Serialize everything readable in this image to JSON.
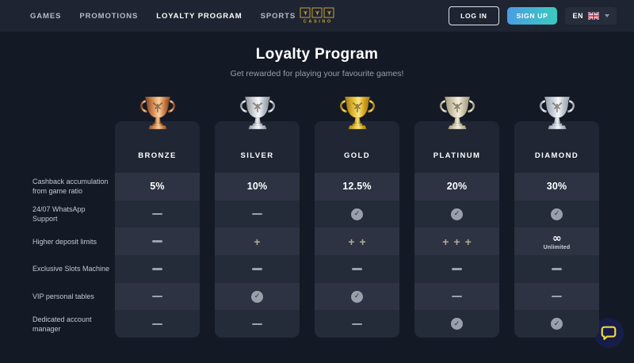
{
  "nav": {
    "items": [
      {
        "label": "GAMES",
        "active": false
      },
      {
        "label": "PROMOTIONS",
        "active": false
      },
      {
        "label": "LOYALTY PROGRAM",
        "active": true
      },
      {
        "label": "SPORTS",
        "active": false
      }
    ],
    "brand": "CASINO",
    "login_label": "LOG IN",
    "signup_label": "SIGN UP",
    "language_code": "EN"
  },
  "hero": {
    "title": "Loyalty Program",
    "subtitle": "Get rewarded for playing your favourite games!"
  },
  "table": {
    "features": [
      "Cashback accumulation from game ratio",
      "24/07 WhatsApp Support",
      "Higher deposit limits",
      "Exclusive Slots Machine",
      "VIP personal tables",
      "Dedicated account manager"
    ],
    "tiers": [
      {
        "name": "BRONZE",
        "trophy": "bronze",
        "cells": [
          "5%",
          "dash",
          "dash",
          "dash",
          "dash",
          "dash"
        ]
      },
      {
        "name": "SILVER",
        "trophy": "silver",
        "cells": [
          "10%",
          "dash",
          "plus1",
          "dash",
          "check",
          "dash"
        ]
      },
      {
        "name": "GOLD",
        "trophy": "gold",
        "cells": [
          "12.5%",
          "check",
          "plus2",
          "dash",
          "check",
          "dash"
        ]
      },
      {
        "name": "PLATINUM",
        "trophy": "platinum",
        "cells": [
          "20%",
          "check",
          "plus3",
          "dash",
          "dash",
          "check"
        ]
      },
      {
        "name": "DIAMOND",
        "trophy": "diamond",
        "cells": [
          "30%",
          "check",
          "infinity",
          "dash",
          "dash",
          "check"
        ]
      }
    ],
    "unlimited_label": "Unlimited",
    "icons": {
      "check_glyph": "✓",
      "plus_glyph": "+",
      "infinity_glyph": "∞"
    }
  },
  "colors": {
    "page_bg": "#141a25",
    "navbar_bg": "#1e2431",
    "card_bg": "#242b39",
    "card_header_bg": "#202633",
    "row_alt_bg": "#2d3343",
    "gold_accent": "#c9a232",
    "signup_gradient_start": "#4a9de2",
    "signup_gradient_end": "#3cc9c0",
    "chat_bubble": "#f2d73e"
  }
}
